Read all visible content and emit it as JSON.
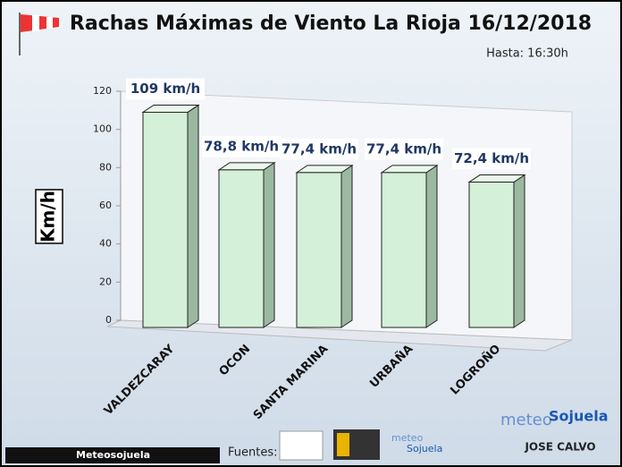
{
  "chart_data": {
    "type": "bar3d",
    "title": "Rachas Máximas de Viento La Rioja 16/12/2018",
    "subtitle": "Hasta: 16:30h",
    "ylabel": "Km/h",
    "categories": [
      "VALDEZCARAY",
      "OCON",
      "SANTA MARINA",
      "URBAÑA",
      "LOGROÑO"
    ],
    "values": [
      109,
      78.8,
      77.4,
      77.4,
      72.4
    ],
    "value_labels": [
      "109 km/h",
      "78,8 km/h",
      "77,4 km/h",
      "77,4 km/h",
      "72,4 km/h"
    ],
    "color": "#d4f0d8",
    "ylim": [
      0,
      120
    ],
    "yticks": [
      0,
      20,
      40,
      60,
      80,
      100,
      120
    ]
  },
  "footer": {
    "sources_label": "Fuentes:",
    "social": "Meteosojuela",
    "brand": [
      "meteo",
      "Sojuela"
    ],
    "author": "JOSE CALVO"
  }
}
